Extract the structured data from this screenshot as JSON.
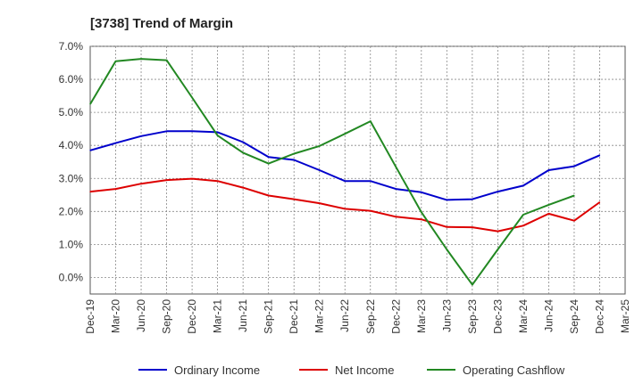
{
  "chart_data": {
    "type": "line",
    "title": "[3738]  Trend of Margin",
    "xlabel": "",
    "ylabel": "",
    "ylim": [
      -0.5,
      7.0
    ],
    "yticks": [
      "7.0%",
      "6.0%",
      "5.0%",
      "4.0%",
      "3.0%",
      "2.0%",
      "1.0%",
      "0.0%"
    ],
    "categories": [
      "Dec-19",
      "Mar-20",
      "Jun-20",
      "Sep-20",
      "Dec-20",
      "Mar-21",
      "Jun-21",
      "Sep-21",
      "Dec-21",
      "Mar-22",
      "Jun-22",
      "Sep-22",
      "Dec-22",
      "Mar-23",
      "Jun-23",
      "Sep-23",
      "Dec-23",
      "Mar-24",
      "Jun-24",
      "Sep-24",
      "Dec-24",
      "Mar-25"
    ],
    "grid": true,
    "legend_position": "bottom",
    "series": [
      {
        "name": "Ordinary Income",
        "color": "#0000cc",
        "values": [
          3.85,
          4.07,
          4.28,
          4.43,
          4.43,
          4.4,
          4.1,
          3.65,
          3.56,
          3.25,
          2.92,
          2.92,
          2.68,
          2.58,
          2.35,
          2.37,
          2.6,
          2.78,
          3.25,
          3.37,
          3.7,
          null
        ]
      },
      {
        "name": "Net Income",
        "color": "#dd0000",
        "values": [
          2.6,
          2.68,
          2.84,
          2.95,
          2.99,
          2.92,
          2.72,
          2.48,
          2.37,
          2.25,
          2.08,
          2.02,
          1.84,
          1.76,
          1.53,
          1.52,
          1.4,
          1.57,
          1.93,
          1.72,
          2.28,
          null
        ]
      },
      {
        "name": "Operating Cashflow",
        "color": "#228822",
        "values": [
          5.25,
          6.55,
          6.62,
          6.58,
          5.45,
          4.3,
          3.78,
          3.45,
          3.75,
          3.98,
          4.35,
          4.73,
          3.35,
          1.98,
          0.85,
          -0.22,
          0.85,
          1.9,
          2.2,
          2.48,
          null,
          null
        ]
      }
    ]
  }
}
